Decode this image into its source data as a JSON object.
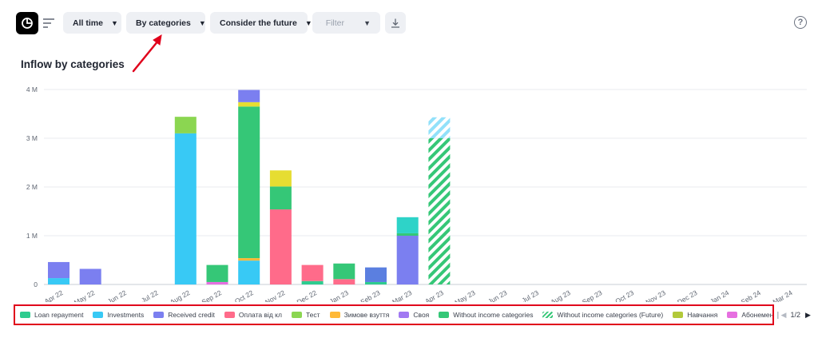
{
  "toolbar": {
    "period_label": "All time",
    "grouping_label": "By categories",
    "future_label": "Consider the future",
    "filter_label": "Filter"
  },
  "title": "Inflow by categories",
  "annotation_color": "#e0001b",
  "legend": {
    "page_label": "1/2",
    "items": [
      {
        "label": "Loan repayment",
        "color": "#2ecc8f",
        "icon": "solid-swatch"
      },
      {
        "label": "Investments",
        "color": "#38c9f5",
        "icon": "solid-swatch"
      },
      {
        "label": "Received credit",
        "color": "#7b7ff0",
        "icon": "solid-swatch"
      },
      {
        "label": "Оплата від кл",
        "color": "#ff6b8a",
        "icon": "solid-swatch"
      },
      {
        "label": "Тест",
        "color": "#8bd651",
        "icon": "solid-swatch"
      },
      {
        "label": "Зимове взуття",
        "color": "#ffb938",
        "icon": "solid-swatch"
      },
      {
        "label": "Своя",
        "color": "#a179f2",
        "icon": "solid-swatch"
      },
      {
        "label": "Without income categories",
        "color": "#35c777",
        "icon": "solid-swatch"
      },
      {
        "label": "Without income categories (Future)",
        "color": "#35c777",
        "icon": "striped-swatch"
      },
      {
        "label": "Навчання",
        "color": "#b2c93a",
        "icon": "solid-swatch"
      },
      {
        "label": "Абонемент",
        "color": "#e66fe0",
        "icon": "solid-swatch"
      },
      {
        "label": "",
        "color": "#ffa63a",
        "icon": "solid-swatch"
      }
    ]
  },
  "chart_data": {
    "type": "bar",
    "stacked": true,
    "title": "Inflow by categories",
    "ylim": [
      0,
      4000000
    ],
    "y_ticks": [
      "0",
      "1 M",
      "2 M",
      "3 M",
      "4 M"
    ],
    "y_tick_values": [
      0,
      1000000,
      2000000,
      3000000,
      4000000
    ],
    "grid": true,
    "legend_position": "bottom",
    "categories": [
      "Apr 22",
      "May 22",
      "Jun 22",
      "Jul 22",
      "Aug 22",
      "Sep 22",
      "Oct 22",
      "Nov 22",
      "Dec 22",
      "Jan 23",
      "Feb 23",
      "Mar 23",
      "Apr 23",
      "May 23",
      "Jun 23",
      "Jul 23",
      "Aug 23",
      "Sep 23",
      "Oct 23",
      "Nov 23",
      "Dec 23",
      "Jan 24",
      "Feb 24",
      "Mar 24"
    ],
    "bars": [
      {
        "category": "Apr 22",
        "segments": [
          {
            "color": "#38c9f5",
            "value": 130000
          },
          {
            "color": "#7b7ff0",
            "value": 330000
          }
        ]
      },
      {
        "category": "May 22",
        "segments": [
          {
            "color": "#7b7ff0",
            "value": 320000
          }
        ]
      },
      {
        "category": "Aug 22",
        "segments": [
          {
            "color": "#38c9f5",
            "value": 3100000
          },
          {
            "color": "#8bd651",
            "value": 340000
          }
        ]
      },
      {
        "category": "Sep 22",
        "segments": [
          {
            "color": "#e66fe0",
            "value": 50000
          },
          {
            "color": "#35c777",
            "value": 350000
          }
        ]
      },
      {
        "category": "Oct 22",
        "segments": [
          {
            "color": "#38c9f5",
            "value": 490000
          },
          {
            "color": "#ffb938",
            "value": 50000
          },
          {
            "color": "#35c777",
            "value": 3110000
          },
          {
            "color": "#e6dd32",
            "value": 90000
          },
          {
            "color": "#7b7ff0",
            "value": 250000
          }
        ]
      },
      {
        "category": "Nov 22",
        "segments": [
          {
            "color": "#ff6b8a",
            "value": 1540000
          },
          {
            "color": "#35c777",
            "value": 470000
          },
          {
            "color": "#e6dd32",
            "value": 330000
          }
        ]
      },
      {
        "category": "Dec 22",
        "segments": [
          {
            "color": "#2ecc8f",
            "value": 70000
          },
          {
            "color": "#ff6b8a",
            "value": 330000
          }
        ]
      },
      {
        "category": "Jan 23",
        "segments": [
          {
            "color": "#ff6b8a",
            "value": 110000
          },
          {
            "color": "#35c777",
            "value": 320000
          }
        ]
      },
      {
        "category": "Feb 23",
        "segments": [
          {
            "color": "#2ecc8f",
            "value": 50000
          },
          {
            "color": "#5b7fe0",
            "value": 300000
          }
        ]
      },
      {
        "category": "Mar 23",
        "segments": [
          {
            "color": "#7b7ff0",
            "value": 1000000
          },
          {
            "color": "#35c777",
            "value": 50000
          },
          {
            "color": "#2ed3c8",
            "value": 330000
          }
        ]
      },
      {
        "category": "Apr 23",
        "segments": [
          {
            "color": "#35c777",
            "value": 3000000,
            "pattern": "stripes"
          },
          {
            "color": "#38c9f5",
            "value": 430000,
            "pattern": "stripes"
          }
        ]
      }
    ]
  }
}
